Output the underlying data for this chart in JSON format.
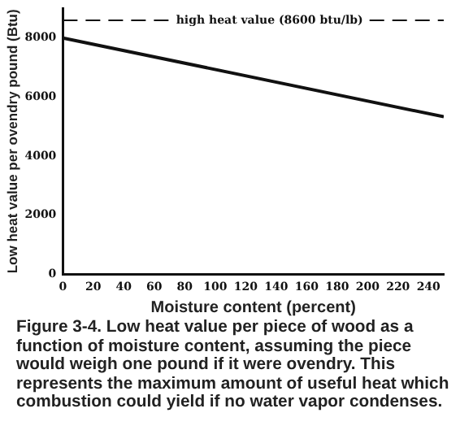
{
  "chart_data": {
    "type": "line",
    "xlabel": "Moisture content (percent)",
    "ylabel": "Low heat value per ovendry pound (Btu)",
    "x": [
      0,
      250
    ],
    "series": [
      {
        "color": "#111111",
        "values": [
          8000,
          5330
        ]
      }
    ],
    "xlim": [
      0,
      250
    ],
    "xticks": [
      0,
      20,
      40,
      60,
      80,
      100,
      120,
      140,
      160,
      180,
      200,
      220,
      240
    ],
    "ylim": [
      0,
      9000
    ],
    "yticks": [
      0,
      2000,
      4000,
      6000,
      8000
    ],
    "ref_lines": [
      {
        "axis": "y",
        "value": 8600,
        "label": "high heat value (8600 btu/lb)",
        "color": "#111111",
        "line_style": "dashed"
      }
    ],
    "grid": false,
    "legend": false,
    "marker": "none",
    "line_style": "solid",
    "annotations": [
      "Figure 3-4.  Low heat value per piece of wood as a function of moisture content, assuming the piece would weigh one pound if it were ovendry. This represents the maximum amount of useful heat which combustion could yield if no water vapor condenses."
    ]
  }
}
